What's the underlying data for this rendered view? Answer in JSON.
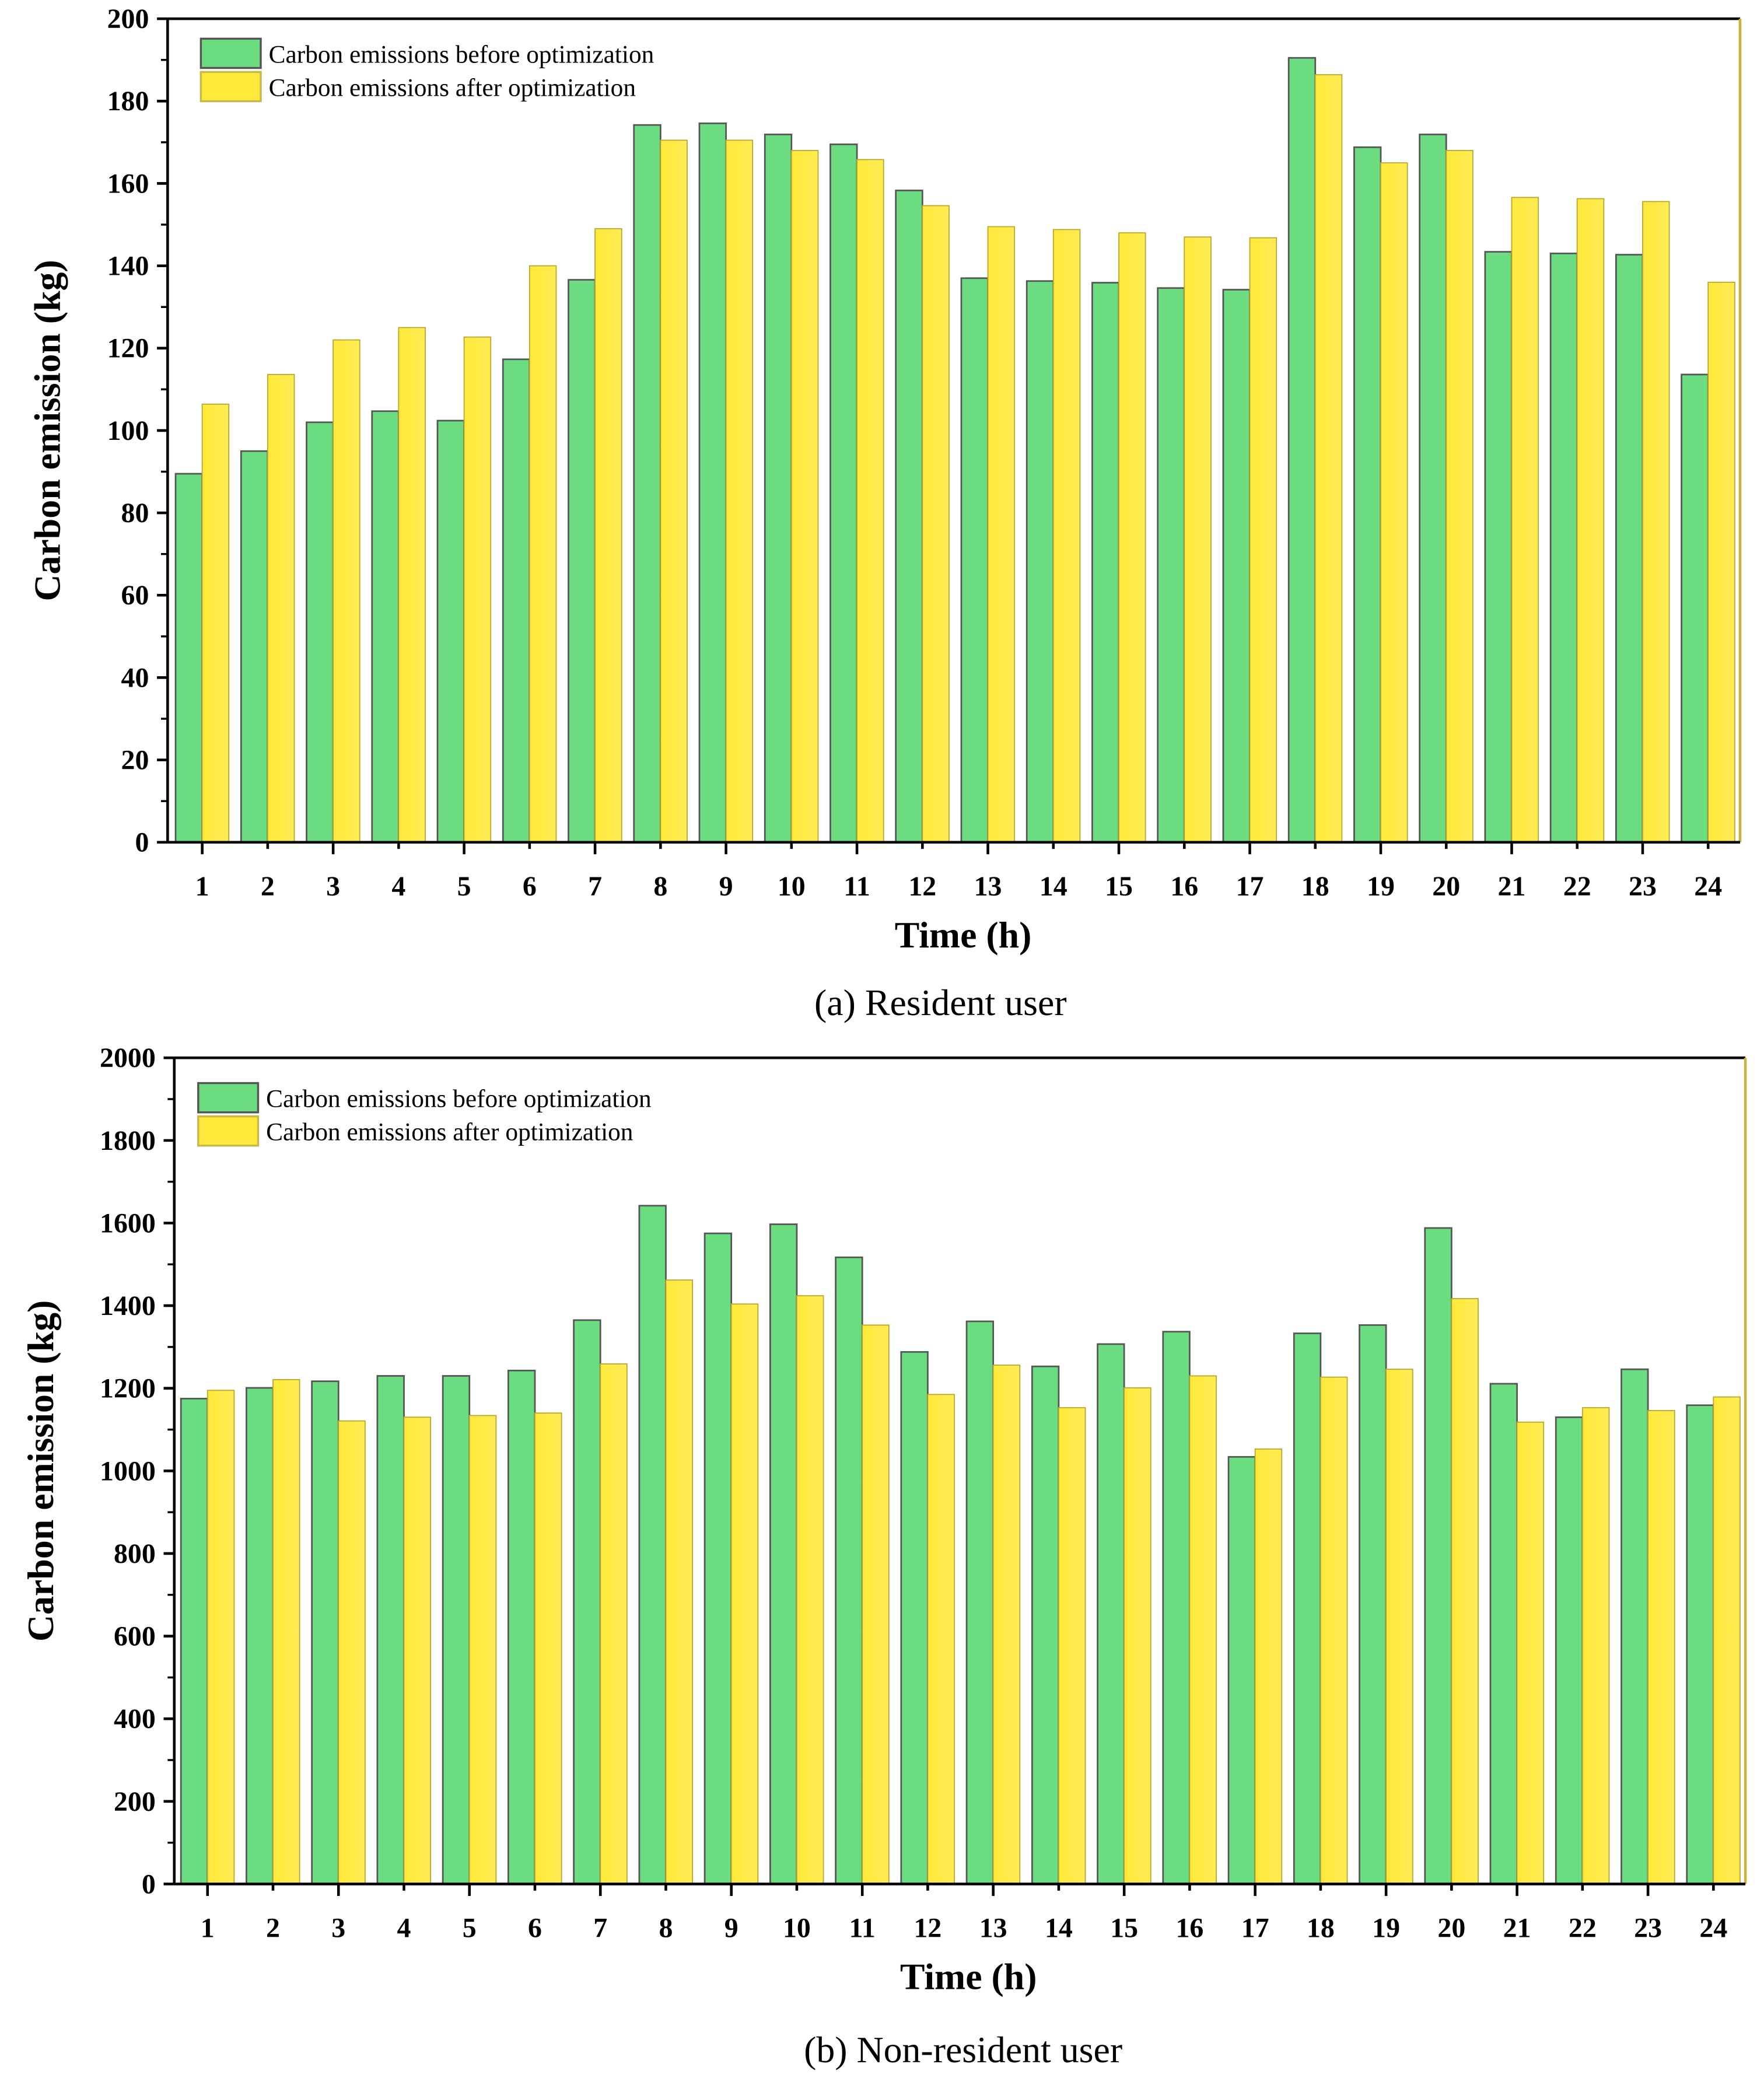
{
  "colors": {
    "before": "#6cdc80",
    "after": "#ffe93a",
    "after_dark": "#ffe000",
    "frame_right": "#c8b43c",
    "bar_edge": "#555555"
  },
  "chart_data": [
    {
      "type": "bar",
      "caption": "(a) Resident user",
      "xlabel": "Time (h)",
      "ylabel": "Carbon emission (kg)",
      "ylim": [
        0,
        200
      ],
      "yticks": [
        0,
        20,
        40,
        60,
        80,
        100,
        120,
        140,
        160,
        180,
        200
      ],
      "legend_position": "top-left",
      "categories": [
        "1",
        "2",
        "3",
        "4",
        "5",
        "6",
        "7",
        "8",
        "9",
        "10",
        "11",
        "12",
        "13",
        "14",
        "15",
        "16",
        "17",
        "18",
        "19",
        "20",
        "21",
        "22",
        "23",
        "24"
      ],
      "series": [
        {
          "name": "Carbon emissions before optimization",
          "values": [
            89.5,
            95,
            102,
            104.7,
            102.4,
            117.3,
            136.6,
            174.2,
            174.6,
            171.9,
            169.5,
            158.3,
            137,
            136.3,
            135.9,
            134.6,
            134.2,
            190.5,
            168.8,
            171.9,
            143.4,
            143,
            142.7,
            113.6
          ]
        },
        {
          "name": "Carbon emissions after optimization",
          "values": [
            106.4,
            113.6,
            122,
            125,
            122.7,
            140,
            149,
            170.5,
            170.5,
            168,
            165.8,
            154.6,
            149.5,
            148.8,
            148,
            147,
            146.8,
            186.4,
            165,
            168,
            156.6,
            156.3,
            155.6,
            136
          ]
        }
      ]
    },
    {
      "type": "bar",
      "caption": "(b) Non-resident user",
      "xlabel": "Time (h)",
      "ylabel": "Carbon emission (kg)",
      "ylim": [
        0,
        2000
      ],
      "yticks": [
        0,
        200,
        400,
        600,
        800,
        1000,
        1200,
        1400,
        1600,
        1800,
        2000
      ],
      "legend_position": "top-left",
      "categories": [
        "1",
        "2",
        "3",
        "4",
        "5",
        "6",
        "7",
        "8",
        "9",
        "10",
        "11",
        "12",
        "13",
        "14",
        "15",
        "16",
        "17",
        "18",
        "19",
        "20",
        "21",
        "22",
        "23",
        "24"
      ],
      "series": [
        {
          "name": "Carbon emissions before optimization",
          "values": [
            1175,
            1201,
            1217,
            1230,
            1230,
            1243,
            1365,
            1642,
            1575,
            1597,
            1517,
            1288,
            1362,
            1253,
            1307,
            1337,
            1034,
            1333,
            1353,
            1588,
            1211,
            1130,
            1246,
            1159
          ]
        },
        {
          "name": "Carbon emissions after optimization",
          "values": [
            1195,
            1221,
            1121,
            1130,
            1134,
            1140,
            1259,
            1462,
            1404,
            1424,
            1353,
            1185,
            1256,
            1153,
            1201,
            1230,
            1053,
            1227,
            1246,
            1417,
            1118,
            1153,
            1146,
            1179
          ]
        }
      ]
    }
  ]
}
